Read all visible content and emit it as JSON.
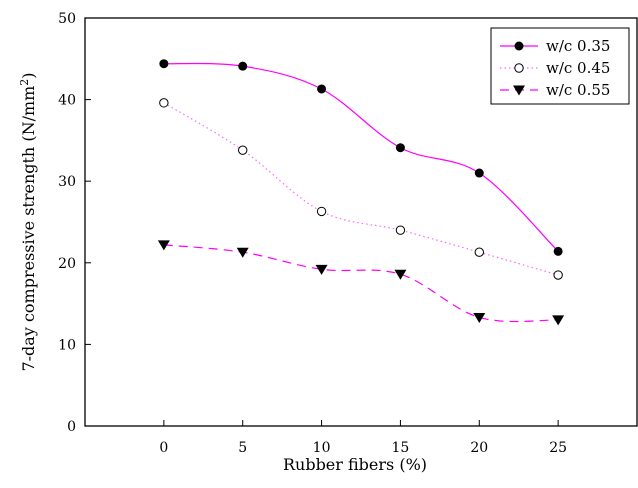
{
  "chart_data": {
    "type": "line",
    "xlabel": "Rubber fibers (%)",
    "ylabel_main": "7-day compressive strength (N/mm",
    "ylabel_sup": "2",
    "ylabel_close": ")",
    "xlim": [
      -5,
      30
    ],
    "ylim": [
      0,
      50
    ],
    "xticks": [
      0,
      5,
      10,
      15,
      20,
      25
    ],
    "yticks": [
      0,
      10,
      20,
      30,
      40,
      50
    ],
    "x": [
      0,
      5,
      10,
      15,
      20,
      25
    ],
    "grid": false,
    "legend_position": "top-right",
    "series": [
      {
        "name": "w/c 0.35",
        "values": [
          44.4,
          44.1,
          41.3,
          34.1,
          31.0,
          21.4
        ],
        "color": "#ff00ff",
        "marker": "filled-circle",
        "dash": ""
      },
      {
        "name": "w/c 0.45",
        "values": [
          39.6,
          33.8,
          26.3,
          24.0,
          21.3,
          18.5
        ],
        "color": "#ff66ff",
        "marker": "open-circle",
        "dash": "1.5,3"
      },
      {
        "name": "w/c 0.55",
        "values": [
          22.2,
          21.3,
          19.2,
          18.6,
          13.3,
          13.0
        ],
        "color": "#ff00ff",
        "marker": "filled-triangle-down",
        "dash": "9,6"
      }
    ]
  }
}
